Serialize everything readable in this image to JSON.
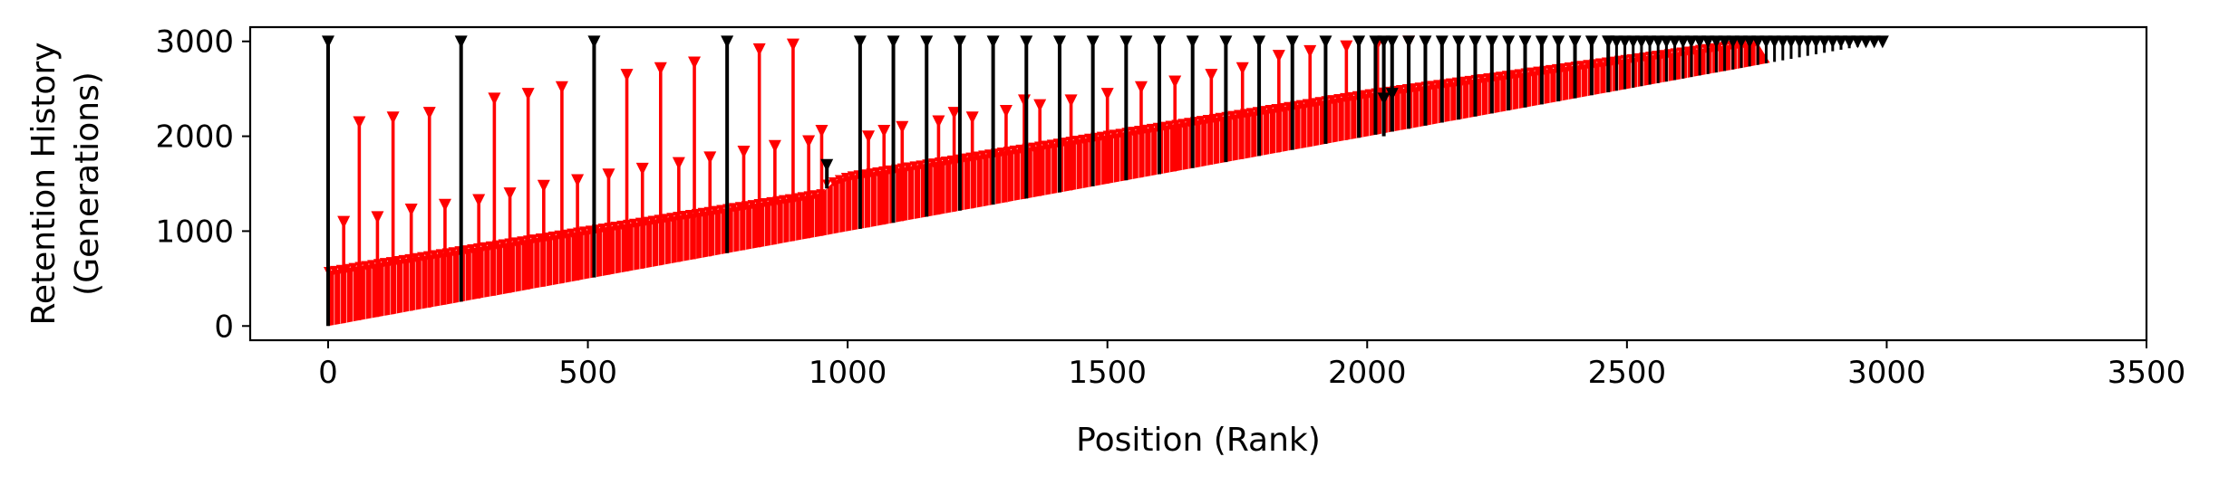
{
  "chart_data": {
    "type": "stem",
    "title": "",
    "xlabel": "Position (Rank)",
    "ylabel_line1": "Retention History",
    "ylabel_line2": "(Generations)",
    "xlim": [
      -150,
      3500
    ],
    "ylim": [
      -150,
      3150
    ],
    "xticks": [
      0,
      500,
      1000,
      1500,
      2000,
      2500,
      3000,
      3500
    ],
    "yticks": [
      0,
      1000,
      2000,
      3000
    ],
    "generation": 3000,
    "colors": {
      "red": "#ff0000",
      "black": "#000000"
    },
    "series": [
      {
        "color": "red",
        "description": "dense stems from rank to origin generation",
        "dense_band": {
          "rank_range": [
            0,
            3000
          ],
          "y_low_at_rank0": 0,
          "y_low_at_rank3000": 3000,
          "band_height_at_rank0": 580,
          "band_height_at_rank3000": 0,
          "upper_edge_points": [
            [
              0,
              580
            ],
            [
              950,
              1400
            ],
            [
              960,
              1500
            ],
            [
              1000,
              1580
            ],
            [
              2000,
              2450
            ],
            [
              2750,
              3000
            ]
          ]
        },
        "tall_stems": [
          [
            30,
            1100
          ],
          [
            60,
            2150
          ],
          [
            95,
            1150
          ],
          [
            125,
            2200
          ],
          [
            160,
            1230
          ],
          [
            195,
            2250
          ],
          [
            225,
            1280
          ],
          [
            290,
            1330
          ],
          [
            320,
            2400
          ],
          [
            350,
            1400
          ],
          [
            385,
            2450
          ],
          [
            415,
            1480
          ],
          [
            450,
            2520
          ],
          [
            480,
            1540
          ],
          [
            540,
            1600
          ],
          [
            575,
            2650
          ],
          [
            605,
            1660
          ],
          [
            640,
            2720
          ],
          [
            675,
            1720
          ],
          [
            705,
            2780
          ],
          [
            735,
            1780
          ],
          [
            800,
            1840
          ],
          [
            830,
            2920
          ],
          [
            860,
            1900
          ],
          [
            895,
            2970
          ],
          [
            925,
            1950
          ],
          [
            950,
            2060
          ],
          [
            1040,
            2000
          ],
          [
            1070,
            2060
          ],
          [
            1105,
            2100
          ],
          [
            1175,
            2160
          ],
          [
            1205,
            2250
          ],
          [
            1240,
            2200
          ],
          [
            1305,
            2270
          ],
          [
            1340,
            2380
          ],
          [
            1370,
            2330
          ],
          [
            1430,
            2380
          ],
          [
            1500,
            2450
          ],
          [
            1565,
            2520
          ],
          [
            1630,
            2580
          ],
          [
            1700,
            2650
          ],
          [
            1760,
            2720
          ],
          [
            1830,
            2850
          ],
          [
            1890,
            2900
          ],
          [
            1960,
            2950
          ],
          [
            2020,
            2980
          ],
          [
            2080,
            3000
          ]
        ]
      },
      {
        "color": "black",
        "description": "stems spanning from origin generation to current generation",
        "full_stems": [
          0,
          256,
          512,
          768,
          1024,
          1088,
          1152,
          1216,
          1280,
          1344,
          1408,
          1472,
          1536,
          1600,
          1664,
          1728,
          1792,
          1856,
          1920,
          1984,
          2016,
          2032,
          2048,
          2080,
          2112,
          2144,
          2176,
          2208,
          2240,
          2272,
          2304,
          2336,
          2368,
          2400,
          2432,
          2464
        ],
        "short_stems": [
          [
            960,
            1450,
            1700
          ],
          [
            2032,
            2000,
            2400
          ],
          [
            2048,
            2050,
            2450
          ]
        ],
        "dense_range": [
          2464,
          3000
        ]
      }
    ]
  }
}
